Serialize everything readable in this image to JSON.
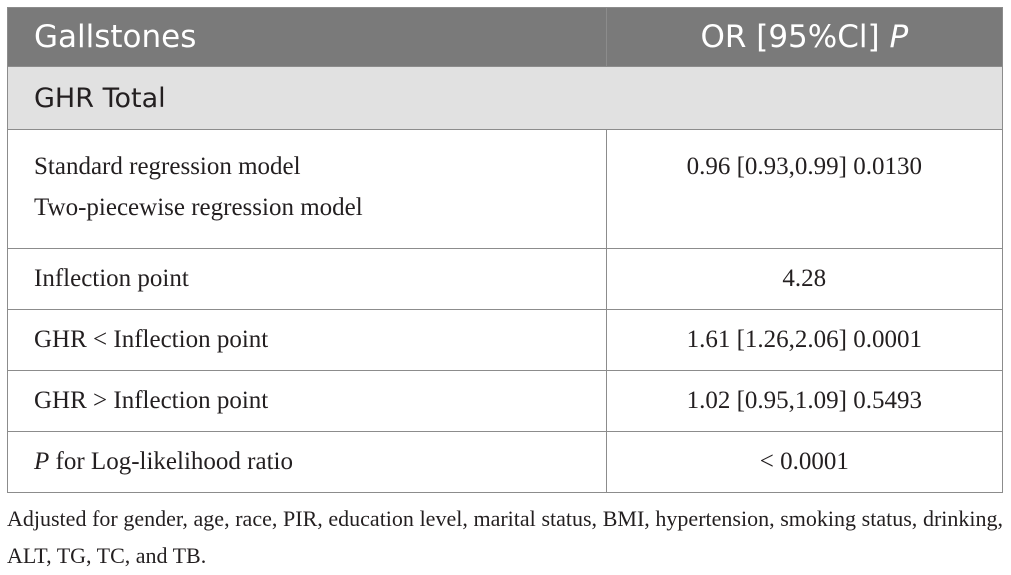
{
  "table": {
    "header": {
      "col1": "Gallstones",
      "col2_text": "OR [95%Cl] ",
      "col2_italic": "P"
    },
    "group_label": "GHR Total",
    "rows": [
      {
        "label_line1": "Standard regression model",
        "label_line2": "Two-piecewise regression model",
        "value": "0.96 [0.93,0.99] 0.0130"
      },
      {
        "label": "Inflection point",
        "value": "4.28"
      },
      {
        "label": "GHR < Inflection point",
        "value": "1.61 [1.26,2.06] 0.0001"
      },
      {
        "label": "GHR > Inflection point",
        "value": "1.02 [0.95,1.09] 0.5493"
      },
      {
        "label_italic": "P",
        "label_rest": " for Log-likelihood ratio",
        "value": "< 0.0001"
      }
    ]
  },
  "footnote": "Adjusted for gender, age, race, PIR, education level, marital status, BMI, hypertension, smoking status, drinking, ALT, TG, TC, and TB."
}
